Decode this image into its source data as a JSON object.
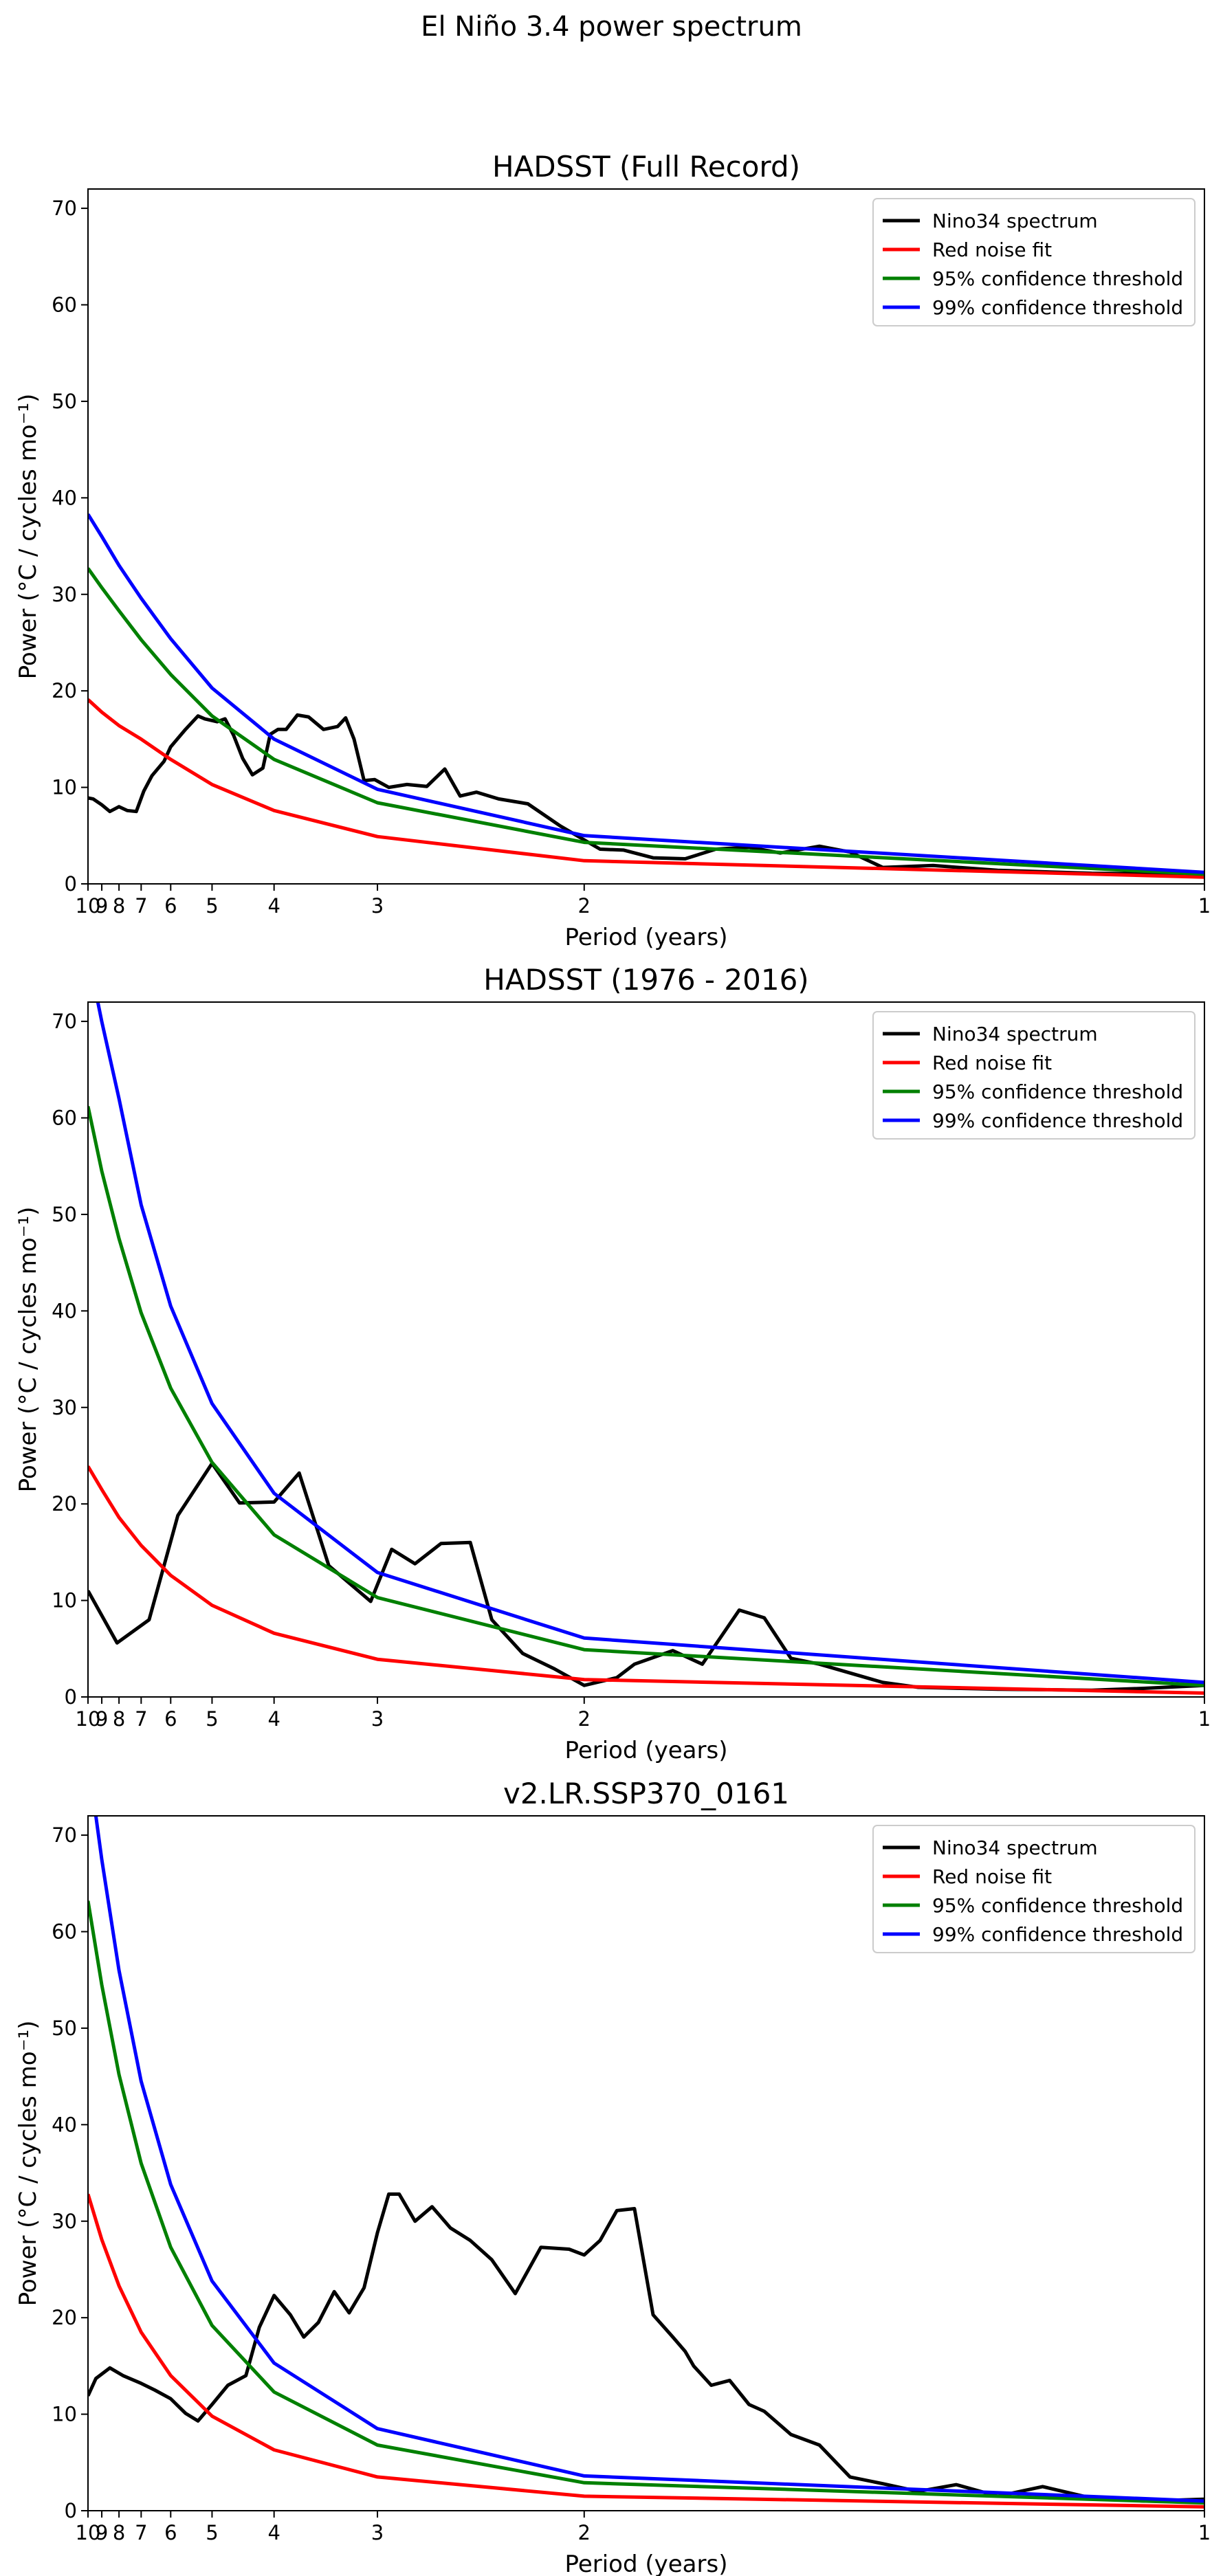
{
  "suptitle": "El Niño 3.4 power spectrum",
  "legend_labels": [
    "Nino34 spectrum",
    "Red noise fit",
    "95% confidence threshold",
    "99% confidence threshold"
  ],
  "colors": {
    "nino34": "#000000",
    "red_noise": "#ff0000",
    "conf95": "#008000",
    "conf99": "#0000ff"
  },
  "chart_data": [
    {
      "type": "line",
      "title": "HADSST (Full Record)",
      "xlabel": "Period (years)",
      "ylabel": "Power (°C / cycles mo⁻¹)",
      "xscale": "reciprocal (frequency axis labelled in period)",
      "xlim": [
        10,
        1
      ],
      "ylim": [
        0,
        72
      ],
      "xticks": [
        10,
        9,
        8,
        7,
        6,
        5,
        4,
        3,
        2,
        1
      ],
      "yticks": [
        0,
        10,
        20,
        30,
        40,
        50,
        60,
        70
      ],
      "grid": false,
      "legend_position": "upper right",
      "series": [
        {
          "name": "Nino34 spectrum",
          "color": "#000000",
          "x": [
            10,
            9.6,
            9,
            8.5,
            8,
            7.6,
            7.2,
            6.9,
            6.6,
            6.2,
            6,
            5.6,
            5.3,
            5.15,
            4.9,
            4.75,
            4.6,
            4.45,
            4.3,
            4.15,
            4.05,
            3.95,
            3.85,
            3.72,
            3.6,
            3.45,
            3.32,
            3.25,
            3.18,
            3.1,
            3.02,
            2.92,
            2.8,
            2.68,
            2.58,
            2.5,
            2.42,
            2.32,
            2.2,
            2.08,
            1.95,
            1.88,
            1.8,
            1.72,
            1.65,
            1.58,
            1.52,
            1.45,
            1.4,
            1.35,
            1.28,
            1.2,
            1.1,
            1
          ],
          "y": [
            8.9,
            8.8,
            8.2,
            7.5,
            8.0,
            7.6,
            7.5,
            9.6,
            11.2,
            12.7,
            14.2,
            16.0,
            17.4,
            17.1,
            16.8,
            17.1,
            15.4,
            13.0,
            11.3,
            12.0,
            15.5,
            16.0,
            16.0,
            17.5,
            17.3,
            16.0,
            16.3,
            17.2,
            15.0,
            10.7,
            10.8,
            10.0,
            10.3,
            10.1,
            11.9,
            9.1,
            9.5,
            8.8,
            8.3,
            6.0,
            3.6,
            3.5,
            2.7,
            2.6,
            3.6,
            3.8,
            3.2,
            3.9,
            3.3,
            1.7,
            1.9,
            1.4,
            1.1,
            1.0
          ]
        },
        {
          "name": "Red noise fit",
          "color": "#ff0000",
          "x": [
            10,
            9,
            8,
            7,
            6,
            5,
            4,
            3,
            2,
            1
          ],
          "y": [
            19.1,
            17.8,
            16.4,
            15.0,
            12.9,
            10.3,
            7.6,
            4.9,
            2.4,
            0.7
          ]
        },
        {
          "name": "95% confidence threshold",
          "color": "#008000",
          "x": [
            10,
            9,
            8,
            7,
            6,
            5,
            4,
            3,
            2,
            1
          ],
          "y": [
            32.7,
            30.7,
            28.3,
            25.3,
            21.7,
            17.4,
            12.9,
            8.4,
            4.3,
            1.0
          ]
        },
        {
          "name": "99% confidence threshold",
          "color": "#0000ff",
          "x": [
            10,
            9,
            8,
            7,
            6,
            5,
            4,
            3,
            2,
            1
          ],
          "y": [
            38.3,
            36.0,
            33.0,
            29.6,
            25.4,
            20.3,
            15.0,
            9.8,
            5.0,
            1.2
          ]
        }
      ]
    },
    {
      "type": "line",
      "title": "HADSST (1976 - 2016)",
      "xlabel": "Period (years)",
      "ylabel": "Power (°C / cycles mo⁻¹)",
      "xscale": "reciprocal (frequency axis labelled in period)",
      "xlim": [
        10,
        1
      ],
      "ylim": [
        0,
        72
      ],
      "xticks": [
        10,
        9,
        8,
        7,
        6,
        5,
        4,
        3,
        2,
        1
      ],
      "yticks": [
        0,
        10,
        20,
        30,
        40,
        50,
        60,
        70
      ],
      "grid": false,
      "legend_position": "upper right",
      "series": [
        {
          "name": "Nino34 spectrum",
          "color": "#000000",
          "x": [
            10,
            8.1,
            6.7,
            5.8,
            5.0,
            4.5,
            4.0,
            3.7,
            3.4,
            3.05,
            2.9,
            2.75,
            2.6,
            2.45,
            2.35,
            2.22,
            2.1,
            2.0,
            1.9,
            1.85,
            1.75,
            1.68,
            1.6,
            1.55,
            1.5,
            1.45,
            1.35,
            1.3,
            1.25,
            1.2,
            1.1,
            1.05,
            1
          ],
          "y": [
            11.0,
            5.6,
            8.0,
            18.8,
            24.2,
            20.1,
            20.2,
            23.2,
            13.6,
            9.9,
            15.3,
            13.8,
            15.9,
            16.0,
            8.0,
            4.5,
            2.9,
            1.2,
            2.0,
            3.4,
            4.8,
            3.4,
            9.0,
            8.2,
            4.0,
            3.4,
            1.5,
            1.0,
            0.9,
            0.8,
            0.7,
            0.9,
            1.2
          ]
        },
        {
          "name": "Red noise fit",
          "color": "#ff0000",
          "x": [
            10,
            9,
            8,
            7,
            6,
            5,
            4,
            3,
            2,
            1
          ],
          "y": [
            23.9,
            21.5,
            18.6,
            15.7,
            12.6,
            9.5,
            6.6,
            3.9,
            1.8,
            0.4
          ]
        },
        {
          "name": "95% confidence threshold",
          "color": "#008000",
          "x": [
            10,
            9,
            8,
            7,
            6,
            5,
            4,
            3,
            2,
            1
          ],
          "y": [
            61.2,
            54.5,
            47.5,
            39.8,
            32.0,
            24.3,
            16.8,
            10.3,
            4.9,
            1.2
          ]
        },
        {
          "name": "99% confidence threshold",
          "color": "#0000ff",
          "x": [
            10,
            9,
            8,
            7,
            6,
            5,
            4,
            3,
            2,
            1
          ],
          "y": [
            77.0,
            70.0,
            62.0,
            51.0,
            40.5,
            30.4,
            21.1,
            12.9,
            6.1,
            1.5
          ]
        }
      ]
    },
    {
      "type": "line",
      "title": "v2.LR.SSP370_0161",
      "xlabel": "Period (years)",
      "ylabel": "Power (°C / cycles mo⁻¹)",
      "xscale": "reciprocal (frequency axis labelled in period)",
      "xlim": [
        10,
        1
      ],
      "ylim": [
        0,
        72
      ],
      "xticks": [
        10,
        9,
        8,
        7,
        6,
        5,
        4,
        3,
        2,
        1
      ],
      "yticks": [
        0,
        10,
        20,
        30,
        40,
        50,
        60,
        70
      ],
      "grid": false,
      "legend_position": "upper right",
      "series": [
        {
          "name": "Nino34 spectrum",
          "color": "#000000",
          "x": [
            10,
            9.4,
            8.5,
            7.8,
            7,
            6.5,
            6,
            5.6,
            5.3,
            5.0,
            4.7,
            4.4,
            4.2,
            4.0,
            3.8,
            3.65,
            3.5,
            3.35,
            3.22,
            3.1,
            3.0,
            2.92,
            2.85,
            2.75,
            2.65,
            2.55,
            2.45,
            2.35,
            2.25,
            2.15,
            2.05,
            2.0,
            1.95,
            1.9,
            1.85,
            1.8,
            1.75,
            1.72,
            1.7,
            1.66,
            1.62,
            1.58,
            1.55,
            1.5,
            1.45,
            1.4,
            1.35,
            1.3,
            1.25,
            1.2,
            1.15,
            1.1,
            1.05,
            1
          ],
          "y": [
            11.9,
            13.7,
            14.8,
            14.0,
            13.2,
            12.5,
            11.6,
            10.1,
            9.3,
            11.0,
            13.0,
            14.0,
            19.0,
            22.3,
            20.3,
            18.0,
            19.5,
            22.7,
            20.5,
            23.1,
            28.8,
            32.8,
            32.8,
            30.0,
            31.5,
            29.3,
            28.0,
            26.0,
            22.5,
            27.3,
            27.1,
            26.5,
            28.0,
            31.1,
            31.3,
            20.3,
            18.0,
            16.5,
            15.0,
            13.0,
            13.5,
            11.0,
            10.3,
            7.9,
            6.8,
            3.5,
            2.8,
            2.0,
            2.7,
            1.5,
            2.5,
            1.3,
            1.0,
            1.2
          ]
        },
        {
          "name": "Red noise fit",
          "color": "#ff0000",
          "x": [
            10,
            9,
            8,
            7,
            6,
            5,
            4,
            3,
            2,
            1
          ],
          "y": [
            32.8,
            28.1,
            23.3,
            18.5,
            14.0,
            9.8,
            6.3,
            3.5,
            1.5,
            0.4
          ]
        },
        {
          "name": "95% confidence threshold",
          "color": "#008000",
          "x": [
            10,
            9,
            8,
            7,
            6,
            5,
            4,
            3,
            2,
            1
          ],
          "y": [
            63.2,
            54.5,
            45.2,
            36.0,
            27.3,
            19.2,
            12.3,
            6.8,
            2.9,
            0.8
          ]
        },
        {
          "name": "99% confidence threshold",
          "color": "#0000ff",
          "x": [
            10,
            9,
            8,
            7,
            6,
            5,
            4,
            3,
            2,
            1
          ],
          "y": [
            78.0,
            67.5,
            56.0,
            44.5,
            33.8,
            23.8,
            15.3,
            8.5,
            3.6,
            1.0
          ]
        }
      ]
    }
  ]
}
